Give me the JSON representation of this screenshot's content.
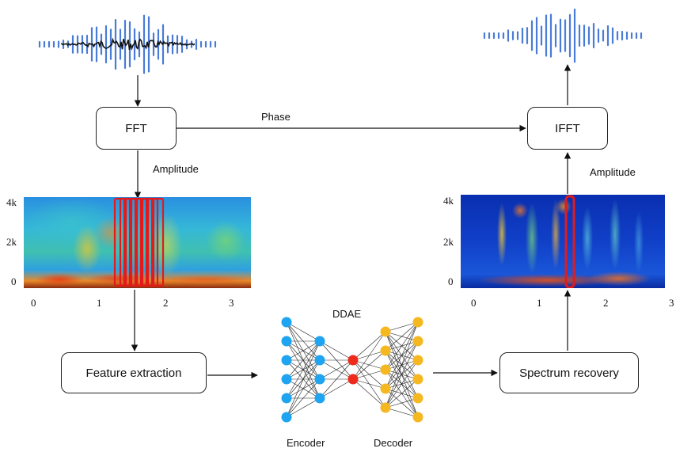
{
  "nodes": {
    "fft": "FFT",
    "ifft": "IFFT",
    "feature_extraction": "Feature extraction",
    "spectrum_recovery": "Spectrum recovery"
  },
  "edges": {
    "phase": "Phase",
    "amplitude_left": "Amplitude",
    "amplitude_right": "Amplitude"
  },
  "network": {
    "title": "DDAE",
    "encoder": "Encoder",
    "decoder": "Decoder",
    "layer_sizes": [
      6,
      4,
      2,
      5,
      6
    ],
    "layer_colors": [
      "#1ea4f0",
      "#1ea4f0",
      "#ee2b1a",
      "#f5b820",
      "#f5b820"
    ]
  },
  "spectrograms": {
    "noisy": {
      "y_ticks": [
        "4k",
        "2k",
        "0"
      ],
      "x_ticks": [
        "0",
        "1",
        "2",
        "3"
      ]
    },
    "enhanced": {
      "y_ticks": [
        "4k",
        "2k",
        "0"
      ],
      "x_ticks": [
        "0",
        "1",
        "2",
        "3"
      ]
    }
  },
  "colors": {
    "wave": "#4a7bd6",
    "noise": "#111111",
    "frame_highlight": "#e41a1a"
  }
}
